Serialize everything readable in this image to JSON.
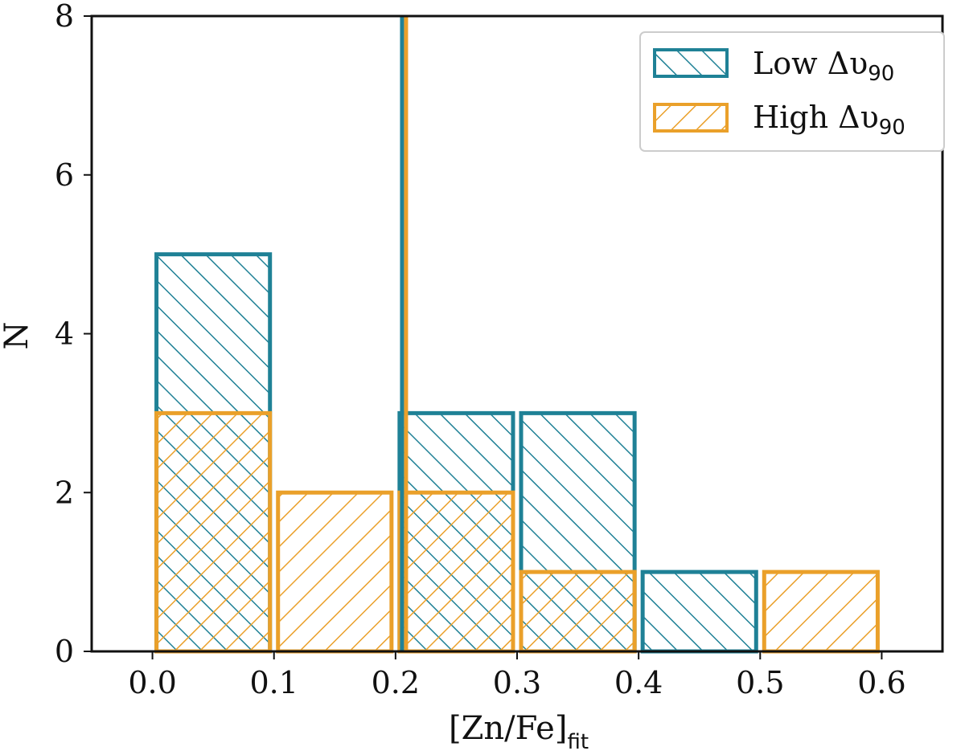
{
  "chart_data": {
    "type": "bar",
    "xlabel": "[Zn/Fe]",
    "xlabel_subscript": "fit",
    "ylabel": "N",
    "xlim": [
      -0.05,
      0.65
    ],
    "ylim": [
      0,
      8
    ],
    "xticks": [
      "0.0",
      "0.1",
      "0.2",
      "0.3",
      "0.4",
      "0.5",
      "0.6"
    ],
    "yticks": [
      "0",
      "2",
      "4",
      "6",
      "8"
    ],
    "bin_edges": [
      0.0,
      0.1,
      0.2,
      0.3,
      0.4,
      0.5,
      0.6
    ],
    "series": [
      {
        "name": "Low Δυ",
        "name_subscript": "90",
        "color": "#1f8196",
        "hatch": "//",
        "values": [
          5,
          0,
          3,
          3,
          1,
          0
        ]
      },
      {
        "name": "High Δυ",
        "name_subscript": "90",
        "color": "#eaa02a",
        "hatch": "\\\\",
        "values": [
          3,
          2,
          2,
          1,
          0,
          1
        ]
      }
    ],
    "vertical_line": {
      "x": 0.207,
      "colors": [
        "#1f8196",
        "#eaa02a"
      ]
    },
    "legend_position": "top-right",
    "grid": false
  }
}
